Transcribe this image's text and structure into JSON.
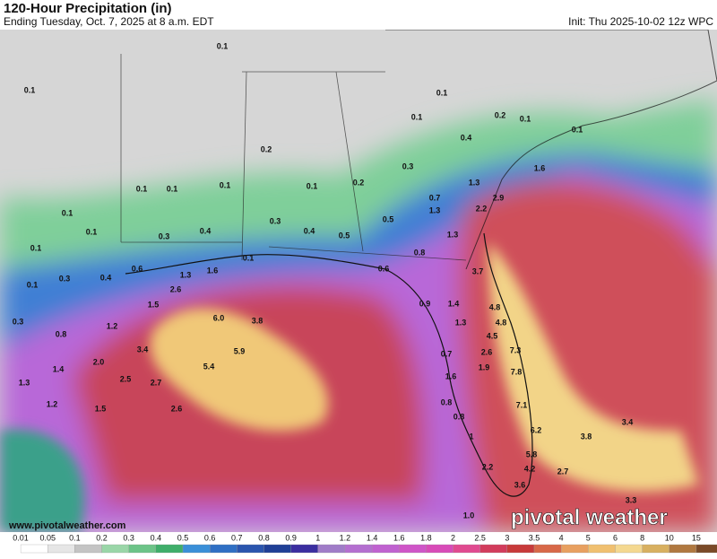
{
  "header": {
    "title": "120-Hour Precipitation (in)",
    "subtitle": "Ending Tuesday, Oct. 7, 2025 at 8 a.m. EDT",
    "init": "Init: Thu 2025-10-02 12z WPC"
  },
  "map": {
    "labels": [
      "0.1",
      "0.1",
      "0.1",
      "0.1",
      "0.2",
      "0.1",
      "0.1",
      "0.2",
      "0.4",
      "1.6",
      "0.3",
      "0.1",
      "0.1",
      "0.1",
      "0.1",
      "0.2",
      "1.3",
      "2.9",
      "0.7",
      "2.2",
      "0.1",
      "0.1",
      "0.3",
      "0.4",
      "0.3",
      "0.4",
      "0.5",
      "0.5",
      "1.3",
      "1.3",
      "0.8",
      "0.1",
      "0.3",
      "0.4",
      "0.6",
      "1.6",
      "1.3",
      "0.1",
      "0.6",
      "3.7",
      "2.6",
      "0.1",
      "0.3",
      "1.2",
      "1.5",
      "6.0",
      "3.8",
      "0.9",
      "1.4",
      "4.8",
      "1.3",
      "4.8",
      "0.8",
      "3.4",
      "5.9",
      "4.5",
      "2.6",
      "7.3",
      "2.0",
      "1.4",
      "5.4",
      "0.7",
      "1.9",
      "7.8",
      "1.3",
      "2.5",
      "2.7",
      "1.6",
      "1.2",
      "1.5",
      "2.6",
      "0.8",
      "7.1",
      "0.8",
      "3.4",
      "6.2",
      "3.8",
      "1",
      "5.8",
      "2.2",
      "4.2",
      "2.7",
      "3.6",
      "3.3",
      "1.0"
    ],
    "website": "www.pivotalweather.com",
    "logo": "pivotal weather"
  },
  "scale": {
    "labels": [
      "0.01",
      "0.05",
      "0.1",
      "0.2",
      "0.3",
      "0.4",
      "0.5",
      "0.6",
      "0.7",
      "0.8",
      "0.9",
      "1",
      "1.2",
      "1.4",
      "1.6",
      "1.8",
      "2",
      "2.5",
      "3",
      "3.5",
      "4",
      "5",
      "6",
      "8",
      "10",
      "15"
    ]
  }
}
